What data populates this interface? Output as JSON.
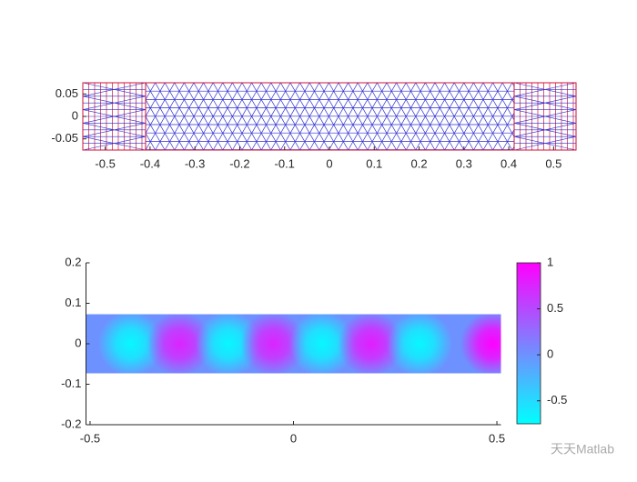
{
  "chart_data": [
    {
      "type": "mesh",
      "xlim": [
        -0.55,
        0.55
      ],
      "ylim": [
        -0.075,
        0.075
      ],
      "xticks": [
        -0.5,
        -0.4,
        -0.3,
        -0.2,
        -0.1,
        0,
        0.1,
        0.2,
        0.3,
        0.4,
        0.5
      ],
      "yticks": [
        -0.05,
        0,
        0.05
      ],
      "edge_color": "#2b2bd0",
      "boundary_color": "#d0103a"
    },
    {
      "type": "field",
      "xlim": [
        -0.51,
        0.51
      ],
      "ylim": [
        -0.2,
        0.2
      ],
      "xticks": [
        -0.5,
        0,
        0.5
      ],
      "yticks": [
        -0.2,
        -0.1,
        0,
        0.1,
        0.2
      ],
      "y_extent": [
        -0.073,
        0.073
      ],
      "background_value": 0,
      "x": [
        -0.4,
        -0.28,
        -0.16,
        -0.05,
        0.07,
        0.19,
        0.31,
        0.49
      ],
      "values": [
        -0.7,
        0.75,
        -0.7,
        0.75,
        -0.7,
        0.8,
        -0.7,
        1
      ],
      "colorbar": {
        "lim": [
          -0.75,
          1
        ],
        "ticks": [
          -0.5,
          0,
          0.5,
          1
        ],
        "colormap": [
          "#00ffff",
          "#ff00ff"
        ]
      }
    }
  ],
  "watermark": "天天Matlab"
}
